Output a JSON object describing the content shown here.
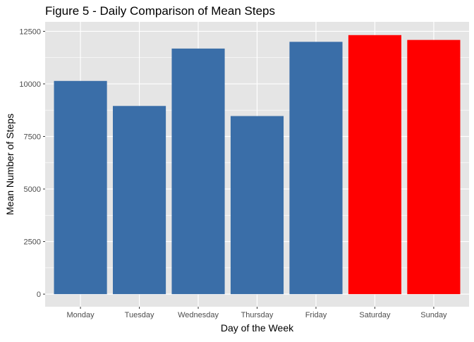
{
  "chart_data": {
    "type": "bar",
    "title": "Figure 5 - Daily Comparison of Mean Steps",
    "xlabel": "Day of the Week",
    "ylabel": "Mean Number of Steps",
    "categories": [
      "Monday",
      "Tuesday",
      "Wednesday",
      "Thursday",
      "Friday",
      "Saturday",
      "Sunday"
    ],
    "values": [
      10140,
      8950,
      11680,
      8470,
      12000,
      12320,
      12090
    ],
    "bar_colors": [
      "#3A6EA8",
      "#3A6EA8",
      "#3A6EA8",
      "#3A6EA8",
      "#3A6EA8",
      "#FF0000",
      "#FF0000"
    ],
    "ylim": [
      -600,
      12950
    ],
    "y_ticks": [
      0,
      2500,
      5000,
      7500,
      10000,
      12500
    ],
    "y_tick_labels": [
      "0",
      "2500",
      "5000",
      "7500",
      "10000",
      "12500"
    ],
    "grid": true,
    "legend": "none",
    "panel_background": "#E5E5E5",
    "gridline_color": "#FFFFFF"
  }
}
